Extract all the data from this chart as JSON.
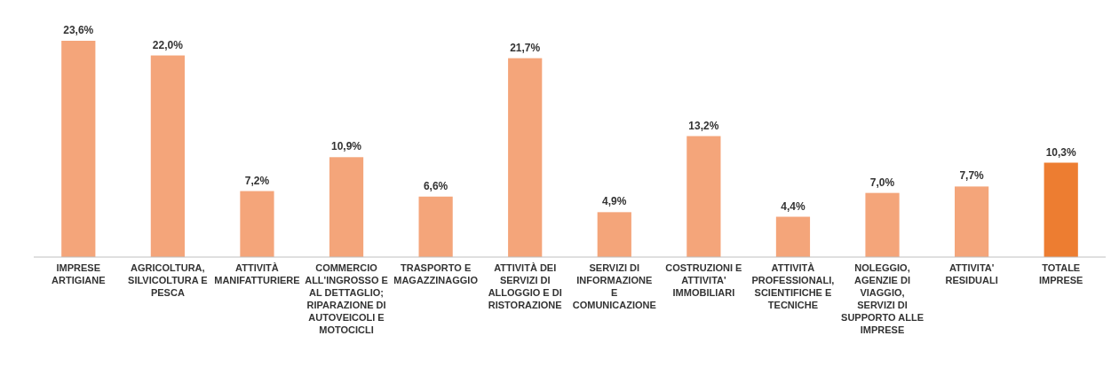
{
  "chart_data": {
    "type": "bar",
    "categories": [
      "IMPRESE ARTIGIANE",
      "AGRICOLTURA, SILVICOLTURA E PESCA",
      "ATTIVITÀ MANIFATTURIERE",
      "COMMERCIO ALL'INGROSSO E AL DETTAGLIO; RIPARAZIONE DI AUTOVEICOLI E MOTOCICLI",
      "TRASPORTO E MAGAZZINAGGIO",
      "ATTIVITÀ DEI SERVIZI DI ALLOGGIO E DI RISTORAZIONE",
      "SERVIZI DI INFORMAZIONE E COMUNICAZIONE",
      "COSTRUZIONI E ATTIVITA' IMMOBILIARI",
      "ATTIVITÀ PROFESSIONALI, SCIENTIFICHE E TECNICHE",
      "NOLEGGIO, AGENZIE DI VIAGGIO, SERVIZI DI SUPPORTO ALLE IMPRESE",
      "ATTIVITA' RESIDUALI",
      "TOTALE IMPRESE"
    ],
    "values": [
      23.6,
      22.0,
      7.2,
      10.9,
      6.6,
      21.7,
      4.9,
      13.2,
      4.4,
      7.0,
      7.7,
      10.3
    ],
    "value_labels": [
      "23,6%",
      "22,0%",
      "7,2%",
      "10,9%",
      "6,6%",
      "21,7%",
      "4,9%",
      "13,2%",
      "4,4%",
      "7,0%",
      "7,7%",
      "10,3%"
    ],
    "colors": [
      "#f4a57a",
      "#f4a57a",
      "#f4a57a",
      "#f4a57a",
      "#f4a57a",
      "#f4a57a",
      "#f4a57a",
      "#f4a57a",
      "#f4a57a",
      "#f4a57a",
      "#f4a57a",
      "#ed7d31"
    ]
  }
}
